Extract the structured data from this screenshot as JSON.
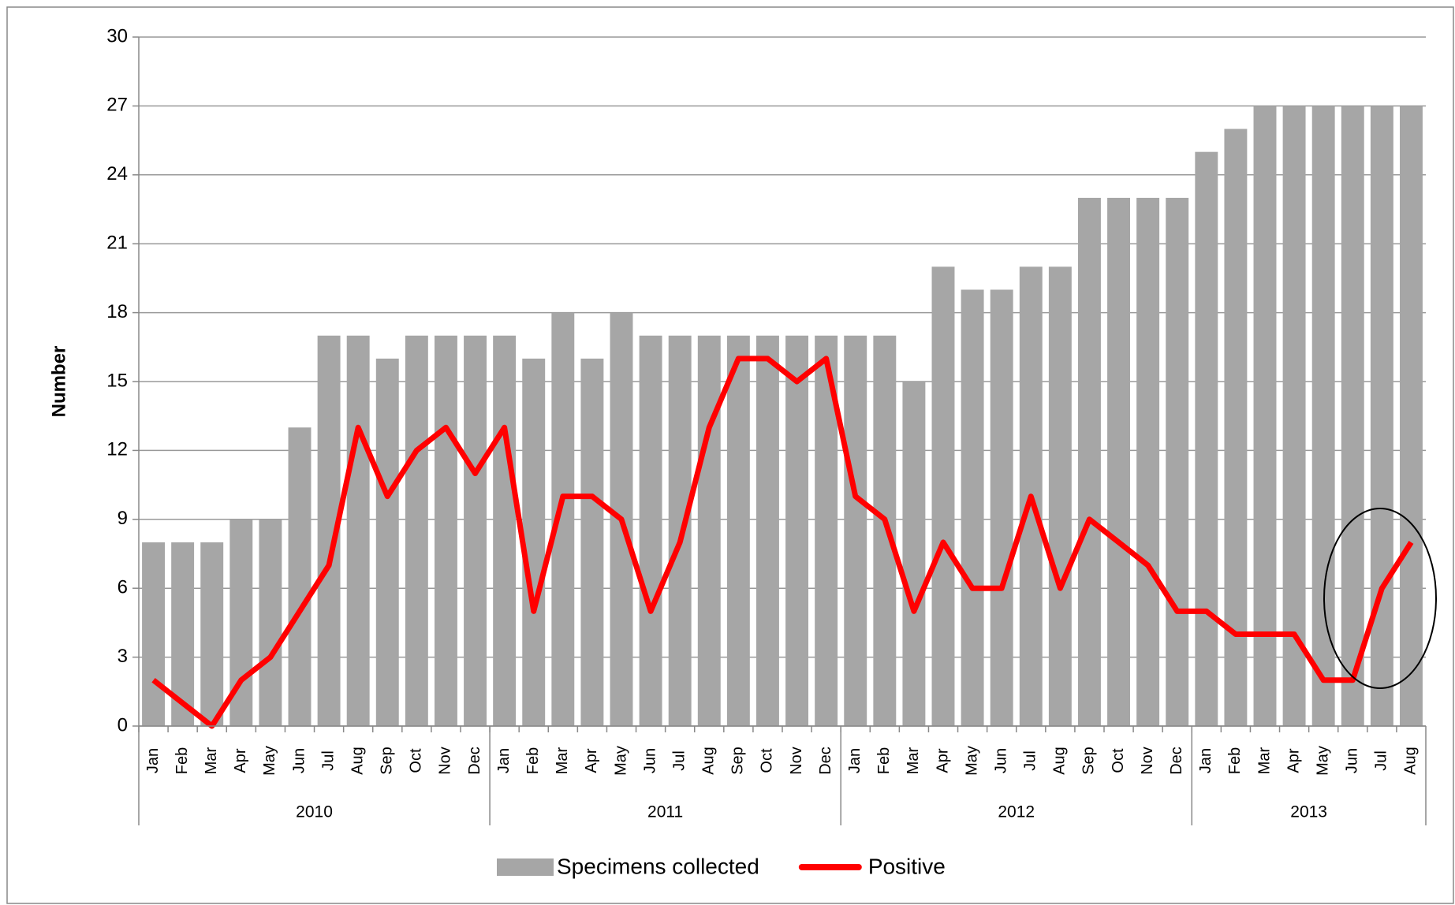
{
  "chart_data": {
    "type": "bar_line",
    "y_label": "Number",
    "groups": [
      {
        "label": "2010",
        "categories": [
          "Jan",
          "Feb",
          "Mar",
          "Apr",
          "May",
          "Jun",
          "Jul",
          "Aug",
          "Sep",
          "Oct",
          "Nov",
          "Dec"
        ]
      },
      {
        "label": "2011",
        "categories": [
          "Jan",
          "Feb",
          "Mar",
          "Apr",
          "May",
          "Jun",
          "Jul",
          "Aug",
          "Sep",
          "Oct",
          "Nov",
          "Dec"
        ]
      },
      {
        "label": "2012",
        "categories": [
          "Jan",
          "Feb",
          "Mar",
          "Apr",
          "May",
          "Jun",
          "Jul",
          "Aug",
          "Sep",
          "Oct",
          "Nov",
          "Dec"
        ]
      },
      {
        "label": "2013",
        "categories": [
          "Jan",
          "Feb",
          "Mar",
          "Apr",
          "May",
          "Jun",
          "Jul",
          "Aug"
        ]
      }
    ],
    "series": [
      {
        "name": "Specimens collected",
        "type": "bar",
        "color": "#a6a6a6",
        "values": [
          8,
          8,
          8,
          9,
          9,
          13,
          17,
          17,
          16,
          17,
          17,
          17,
          17,
          16,
          18,
          16,
          18,
          17,
          17,
          17,
          17,
          17,
          17,
          17,
          17,
          17,
          15,
          20,
          19,
          19,
          20,
          20,
          23,
          23,
          23,
          23,
          25,
          26,
          27,
          27,
          27,
          27,
          27,
          27
        ]
      },
      {
        "name": "Positive",
        "type": "line",
        "color": "#ff0000",
        "values": [
          2,
          1,
          0,
          2,
          3,
          5,
          7,
          13,
          10,
          12,
          13,
          11,
          13,
          5,
          10,
          10,
          9,
          5,
          8,
          13,
          16,
          16,
          15,
          16,
          10,
          9,
          5,
          8,
          6,
          6,
          10,
          6,
          9,
          8,
          7,
          5,
          5,
          4,
          4,
          4,
          2,
          2,
          6,
          8
        ]
      }
    ],
    "ylim": [
      0,
      30
    ],
    "yticks": [
      0,
      3,
      6,
      9,
      12,
      15,
      18,
      21,
      24,
      27,
      30
    ],
    "grid": true,
    "legend": "bottom"
  }
}
